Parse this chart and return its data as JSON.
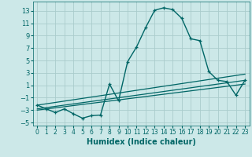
{
  "xlabel": "Humidex (Indice chaleur)",
  "background_color": "#cce8e8",
  "grid_color": "#aacccc",
  "line_color": "#006666",
  "xlim": [
    -0.5,
    23.5
  ],
  "ylim": [
    -5.5,
    14.5
  ],
  "yticks": [
    -5,
    -3,
    -1,
    1,
    3,
    5,
    7,
    9,
    11,
    13
  ],
  "xticks": [
    0,
    1,
    2,
    3,
    4,
    5,
    6,
    7,
    8,
    9,
    10,
    11,
    12,
    13,
    14,
    15,
    16,
    17,
    18,
    19,
    20,
    21,
    22,
    23
  ],
  "series1_x": [
    0,
    1,
    2,
    3,
    4,
    5,
    6,
    7,
    8,
    9,
    10,
    11,
    12,
    13,
    14,
    15,
    16,
    17,
    18,
    19,
    20,
    21,
    22,
    23
  ],
  "series1_y": [
    -2.2,
    -2.8,
    -3.4,
    -2.8,
    -3.6,
    -4.3,
    -3.9,
    -3.8,
    1.2,
    -1.5,
    4.8,
    7.2,
    10.3,
    13.1,
    13.5,
    13.2,
    11.8,
    8.5,
    8.2,
    3.2,
    1.8,
    1.6,
    -0.6,
    1.8
  ],
  "series2_x": [
    0,
    23
  ],
  "series2_y": [
    -2.2,
    2.8
  ],
  "series3_x": [
    0,
    23
  ],
  "series3_y": [
    -2.8,
    1.8
  ],
  "series4_x": [
    0,
    23
  ],
  "series4_y": [
    -3.0,
    1.2
  ]
}
